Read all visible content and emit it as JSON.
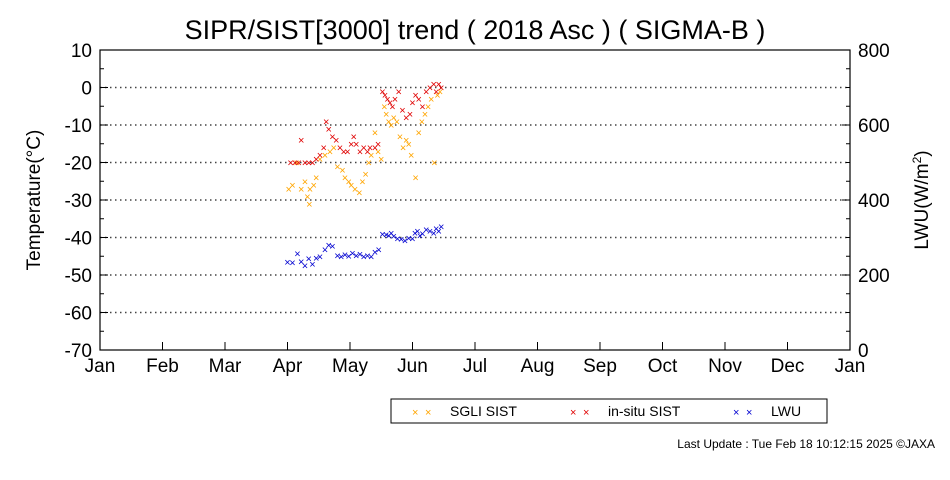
{
  "chart_data": {
    "type": "scatter",
    "title": "SIPR/SIST[3000] trend ( 2018 Asc ) ( SIGMA-B )",
    "ylabel": "Temperature(°C)",
    "y2label_main": "LWU(W/m",
    "y2label_sup": "2",
    "y2label_end": ")",
    "ylim": [
      -70,
      10
    ],
    "y2lim": [
      0,
      800
    ],
    "xlim": [
      0,
      12
    ],
    "x_unit": "months from Jan 1 (month index)",
    "grid": "horizontal dotted",
    "legend_position": "bottom-right",
    "categories": [
      "Jan",
      "Feb",
      "Mar",
      "Apr",
      "May",
      "Jun",
      "Jul",
      "Aug",
      "Sep",
      "Oct",
      "Nov",
      "Dec",
      "Jan"
    ],
    "yticks": [
      "10",
      "0",
      "-10",
      "-20",
      "-30",
      "-40",
      "-50",
      "-60",
      "-70"
    ],
    "y2ticks": [
      "800",
      "600",
      "400",
      "200",
      "0"
    ],
    "series": [
      {
        "name": "SGLI SIST",
        "color": "#ffa500",
        "axis": "left",
        "points": [
          [
            3.02,
            -27
          ],
          [
            3.08,
            -26
          ],
          [
            3.15,
            -20
          ],
          [
            3.22,
            -27
          ],
          [
            3.28,
            -25
          ],
          [
            3.32,
            -29
          ],
          [
            3.36,
            -27
          ],
          [
            3.42,
            -26
          ],
          [
            3.46,
            -24
          ],
          [
            3.35,
            -31
          ],
          [
            3.52,
            -19
          ],
          [
            3.6,
            -18
          ],
          [
            3.68,
            -17
          ],
          [
            3.74,
            -16
          ],
          [
            3.8,
            -21
          ],
          [
            3.88,
            -22
          ],
          [
            3.92,
            -24
          ],
          [
            3.98,
            -25
          ],
          [
            4.02,
            -26
          ],
          [
            4.08,
            -27
          ],
          [
            4.15,
            -28
          ],
          [
            4.2,
            -25
          ],
          [
            4.25,
            -23
          ],
          [
            4.3,
            -20
          ],
          [
            4.34,
            -18
          ],
          [
            4.4,
            -12
          ],
          [
            4.45,
            -17
          ],
          [
            4.5,
            -19
          ],
          [
            4.55,
            -5
          ],
          [
            4.58,
            -7
          ],
          [
            4.62,
            -9
          ],
          [
            4.66,
            -10
          ],
          [
            4.7,
            -8
          ],
          [
            4.75,
            -9
          ],
          [
            4.8,
            -13
          ],
          [
            4.85,
            -16
          ],
          [
            4.9,
            -14
          ],
          [
            4.94,
            -15
          ],
          [
            4.98,
            -18
          ],
          [
            5.05,
            -24
          ],
          [
            5.1,
            -12
          ],
          [
            5.15,
            -9
          ],
          [
            5.2,
            -7
          ],
          [
            5.25,
            -5
          ],
          [
            5.3,
            -3
          ],
          [
            5.35,
            -20
          ],
          [
            5.4,
            -2
          ],
          [
            5.44,
            -1
          ]
        ]
      },
      {
        "name": "in-situ SIST",
        "color": "#e00000",
        "axis": "left",
        "points": [
          [
            3.05,
            -20
          ],
          [
            3.12,
            -20
          ],
          [
            3.18,
            -20
          ],
          [
            3.22,
            -14
          ],
          [
            3.28,
            -20
          ],
          [
            3.34,
            -20
          ],
          [
            3.4,
            -20
          ],
          [
            3.46,
            -19
          ],
          [
            3.52,
            -18
          ],
          [
            3.58,
            -16
          ],
          [
            3.62,
            -9
          ],
          [
            3.66,
            -11
          ],
          [
            3.72,
            -13
          ],
          [
            3.78,
            -14
          ],
          [
            3.84,
            -16
          ],
          [
            3.9,
            -17
          ],
          [
            3.96,
            -17
          ],
          [
            4.02,
            -15
          ],
          [
            4.06,
            -13
          ],
          [
            4.1,
            -15
          ],
          [
            4.16,
            -17
          ],
          [
            4.22,
            -16
          ],
          [
            4.28,
            -17
          ],
          [
            4.32,
            -16
          ],
          [
            4.4,
            -16
          ],
          [
            4.45,
            -15
          ],
          [
            4.52,
            -1
          ],
          [
            4.56,
            -2
          ],
          [
            4.6,
            -3
          ],
          [
            4.64,
            -4
          ],
          [
            4.68,
            -5
          ],
          [
            4.72,
            -3
          ],
          [
            4.78,
            -1
          ],
          [
            4.84,
            -6
          ],
          [
            4.9,
            -8
          ],
          [
            4.96,
            -7
          ],
          [
            5.0,
            -4
          ],
          [
            5.05,
            -2
          ],
          [
            5.1,
            -3
          ],
          [
            5.16,
            -5
          ],
          [
            5.22,
            -1
          ],
          [
            5.28,
            0
          ],
          [
            5.34,
            1
          ],
          [
            5.38,
            -1
          ],
          [
            5.42,
            1
          ],
          [
            5.46,
            0
          ]
        ]
      },
      {
        "name": "LWU",
        "color": "#0000d0",
        "axis": "right",
        "points": [
          [
            3.0,
            235
          ],
          [
            3.08,
            233
          ],
          [
            3.16,
            258
          ],
          [
            3.22,
            236
          ],
          [
            3.28,
            225
          ],
          [
            3.34,
            244
          ],
          [
            3.4,
            230
          ],
          [
            3.46,
            245
          ],
          [
            3.52,
            250
          ],
          [
            3.6,
            268
          ],
          [
            3.66,
            280
          ],
          [
            3.72,
            278
          ],
          [
            3.8,
            252
          ],
          [
            3.86,
            250
          ],
          [
            3.92,
            255
          ],
          [
            3.98,
            251
          ],
          [
            4.04,
            259
          ],
          [
            4.1,
            252
          ],
          [
            4.16,
            256
          ],
          [
            4.22,
            250
          ],
          [
            4.28,
            252
          ],
          [
            4.34,
            249
          ],
          [
            4.4,
            262
          ],
          [
            4.46,
            268
          ],
          [
            4.52,
            310
          ],
          [
            4.58,
            308
          ],
          [
            4.62,
            306
          ],
          [
            4.66,
            312
          ],
          [
            4.7,
            304
          ],
          [
            4.76,
            298
          ],
          [
            4.82,
            296
          ],
          [
            4.88,
            292
          ],
          [
            4.94,
            299
          ],
          [
            5.0,
            298
          ],
          [
            5.04,
            312
          ],
          [
            5.08,
            318
          ],
          [
            5.12,
            306
          ],
          [
            5.16,
            311
          ],
          [
            5.22,
            322
          ],
          [
            5.28,
            318
          ],
          [
            5.34,
            312
          ],
          [
            5.38,
            324
          ],
          [
            5.42,
            318
          ],
          [
            5.46,
            330
          ]
        ]
      }
    ]
  },
  "footer": {
    "update_label": "Last Update : Tue Feb 18 10:12:15 2025",
    "copyright": "©JAXA"
  }
}
